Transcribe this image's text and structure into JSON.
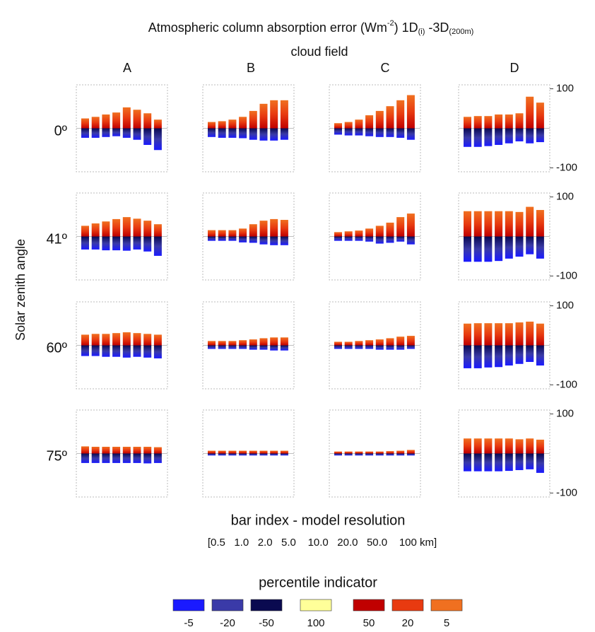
{
  "title_parts": [
    "Atmospheric column absorption error (Wm",
    "-2",
    ") 1D",
    "(i)",
    " -3D",
    "(200m)"
  ],
  "column_title": "cloud field",
  "columns": [
    "A",
    "B",
    "C",
    "D"
  ],
  "y_label": "Solar zenith angle",
  "rows": [
    "0º",
    "41º",
    "60º",
    "75º"
  ],
  "x_label": "bar index  - model resolution",
  "x_sublabel": "[0.5   1.0   2.0   5.0    10.0   20.0   50.0    100 km]",
  "legend": {
    "title": "percentile indicator",
    "items": [
      {
        "label": "-5",
        "color": "#1a1aff"
      },
      {
        "label": "-20",
        "color": "#3a3aa8"
      },
      {
        "label": "-50",
        "color": "#0a0a50"
      },
      {
        "label": "100",
        "color": "#ffff99"
      },
      {
        "label": "50",
        "color": "#c00000"
      },
      {
        "label": "20",
        "color": "#e83a10"
      },
      {
        "label": "5",
        "color": "#f07020"
      }
    ]
  },
  "chart_data": [
    {
      "type": "bar",
      "ylim": [
        -110,
        110
      ],
      "series": [
        {
          "colors": [
            "#c00000",
            "#e83a10",
            "#f07020"
          ],
          "values": [
            25,
            29,
            35,
            40,
            53,
            47,
            38,
            22
          ]
        },
        {
          "colors": [
            "#0a0a50",
            "#3a3aa8",
            "#1a1aff"
          ],
          "values": [
            -24,
            -24,
            -22,
            -20,
            -24,
            -29,
            -42,
            -55
          ]
        }
      ]
    },
    {
      "type": "bar",
      "ylim": [
        -110,
        110
      ],
      "series": [
        {
          "colors": [
            "#c00000",
            "#e83a10",
            "#f07020"
          ],
          "values": [
            16,
            18,
            22,
            29,
            44,
            62,
            71,
            71
          ]
        },
        {
          "colors": [
            "#0a0a50",
            "#3a3aa8",
            "#1a1aff"
          ],
          "values": [
            -22,
            -24,
            -24,
            -25,
            -29,
            -31,
            -31,
            -29
          ]
        }
      ]
    },
    {
      "type": "bar",
      "ylim": [
        -110,
        110
      ],
      "series": [
        {
          "colors": [
            "#c00000",
            "#e83a10",
            "#f07020"
          ],
          "values": [
            13,
            16,
            22,
            33,
            44,
            56,
            71,
            84
          ]
        },
        {
          "colors": [
            "#0a0a50",
            "#3a3aa8",
            "#1a1aff"
          ],
          "values": [
            -16,
            -18,
            -18,
            -20,
            -22,
            -22,
            -24,
            -29
          ]
        }
      ]
    },
    {
      "type": "bar",
      "ylim": [
        -110,
        110
      ],
      "yticks": [
        100,
        -100
      ],
      "series": [
        {
          "colors": [
            "#c00000",
            "#e83a10",
            "#f07020"
          ],
          "values": [
            29,
            31,
            31,
            35,
            35,
            38,
            80,
            65
          ]
        },
        {
          "colors": [
            "#0a0a50",
            "#3a3aa8",
            "#1a1aff"
          ],
          "values": [
            -47,
            -47,
            -45,
            -42,
            -38,
            -33,
            -38,
            -35
          ]
        }
      ]
    },
    {
      "type": "bar",
      "ylim": [
        -110,
        110
      ],
      "series": [
        {
          "colors": [
            "#c00000",
            "#e83a10",
            "#f07020"
          ],
          "values": [
            27,
            33,
            38,
            44,
            49,
            45,
            40,
            31
          ]
        },
        {
          "colors": [
            "#0a0a50",
            "#3a3aa8",
            "#1a1aff"
          ],
          "values": [
            -33,
            -33,
            -35,
            -35,
            -36,
            -33,
            -38,
            -49
          ]
        }
      ]
    },
    {
      "type": "bar",
      "ylim": [
        -110,
        110
      ],
      "series": [
        {
          "colors": [
            "#c00000",
            "#e83a10",
            "#f07020"
          ],
          "values": [
            16,
            16,
            16,
            20,
            31,
            40,
            44,
            42
          ]
        },
        {
          "colors": [
            "#0a0a50",
            "#3a3aa8",
            "#1a1aff"
          ],
          "values": [
            -11,
            -11,
            -11,
            -15,
            -16,
            -20,
            -22,
            -22
          ]
        }
      ]
    },
    {
      "type": "bar",
      "ylim": [
        -110,
        110
      ],
      "series": [
        {
          "colors": [
            "#c00000",
            "#e83a10",
            "#f07020"
          ],
          "values": [
            11,
            13,
            15,
            20,
            27,
            35,
            49,
            58
          ]
        },
        {
          "colors": [
            "#0a0a50",
            "#3a3aa8",
            "#1a1aff"
          ],
          "values": [
            -11,
            -11,
            -11,
            -13,
            -18,
            -16,
            -13,
            -20
          ]
        }
      ]
    },
    {
      "type": "bar",
      "ylim": [
        -110,
        110
      ],
      "yticks": [
        100,
        -100
      ],
      "series": [
        {
          "colors": [
            "#c00000",
            "#e83a10",
            "#f07020"
          ],
          "values": [
            64,
            64,
            64,
            64,
            64,
            62,
            75,
            67
          ]
        },
        {
          "colors": [
            "#0a0a50",
            "#3a3aa8",
            "#1a1aff"
          ],
          "values": [
            -64,
            -64,
            -64,
            -62,
            -56,
            -51,
            -45,
            -56
          ]
        }
      ]
    },
    {
      "type": "bar",
      "ylim": [
        -110,
        110
      ],
      "series": [
        {
          "colors": [
            "#c00000",
            "#e83a10",
            "#f07020"
          ],
          "values": [
            27,
            29,
            29,
            31,
            33,
            31,
            29,
            27
          ]
        },
        {
          "colors": [
            "#0a0a50",
            "#3a3aa8",
            "#1a1aff"
          ],
          "values": [
            -27,
            -27,
            -29,
            -29,
            -31,
            -29,
            -31,
            -33
          ]
        }
      ]
    },
    {
      "type": "bar",
      "ylim": [
        -110,
        110
      ],
      "series": [
        {
          "colors": [
            "#c00000",
            "#e83a10",
            "#f07020"
          ],
          "values": [
            11,
            11,
            11,
            13,
            15,
            18,
            20,
            20
          ]
        },
        {
          "colors": [
            "#0a0a50",
            "#3a3aa8",
            "#1a1aff"
          ],
          "values": [
            -9,
            -9,
            -9,
            -9,
            -11,
            -11,
            -13,
            -13
          ]
        }
      ]
    },
    {
      "type": "bar",
      "ylim": [
        -110,
        110
      ],
      "series": [
        {
          "colors": [
            "#c00000",
            "#e83a10",
            "#f07020"
          ],
          "values": [
            9,
            9,
            11,
            13,
            15,
            18,
            22,
            24
          ]
        },
        {
          "colors": [
            "#0a0a50",
            "#3a3aa8",
            "#1a1aff"
          ],
          "values": [
            -9,
            -9,
            -9,
            -9,
            -11,
            -11,
            -11,
            -9
          ]
        }
      ]
    },
    {
      "type": "bar",
      "ylim": [
        -110,
        110
      ],
      "yticks": [
        100,
        -100
      ],
      "series": [
        {
          "colors": [
            "#c00000",
            "#e83a10",
            "#f07020"
          ],
          "values": [
            55,
            56,
            56,
            56,
            56,
            58,
            60,
            55
          ]
        },
        {
          "colors": [
            "#0a0a50",
            "#3a3aa8",
            "#1a1aff"
          ],
          "values": [
            -58,
            -58,
            -56,
            -55,
            -51,
            -47,
            -42,
            -51
          ]
        }
      ]
    },
    {
      "type": "bar",
      "ylim": [
        -110,
        110
      ],
      "series": [
        {
          "colors": [
            "#c00000",
            "#e83a10",
            "#f07020"
          ],
          "values": [
            18,
            17,
            17,
            17,
            17,
            17,
            17,
            16
          ]
        },
        {
          "colors": [
            "#0a0a50",
            "#3a3aa8",
            "#1a1aff"
          ],
          "values": [
            -24,
            -24,
            -24,
            -24,
            -24,
            -24,
            -25,
            -24
          ]
        }
      ]
    },
    {
      "type": "bar",
      "ylim": [
        -110,
        110
      ],
      "series": [
        {
          "colors": [
            "#c00000",
            "#e83a10",
            "#f07020"
          ],
          "values": [
            7,
            7,
            7,
            7,
            7,
            7,
            7,
            7
          ]
        },
        {
          "colors": [
            "#0a0a50",
            "#3a3aa8",
            "#1a1aff"
          ],
          "values": [
            -5,
            -5,
            -5,
            -5,
            -5,
            -5,
            -5,
            -5
          ]
        }
      ]
    },
    {
      "type": "bar",
      "ylim": [
        -110,
        110
      ],
      "series": [
        {
          "colors": [
            "#c00000",
            "#e83a10",
            "#f07020"
          ],
          "values": [
            5,
            5,
            5,
            5,
            5,
            6,
            7,
            9
          ]
        },
        {
          "colors": [
            "#0a0a50",
            "#3a3aa8",
            "#1a1aff"
          ],
          "values": [
            -5,
            -5,
            -5,
            -5,
            -5,
            -5,
            -5,
            -5
          ]
        }
      ]
    },
    {
      "type": "bar",
      "ylim": [
        -110,
        110
      ],
      "yticks": [
        100,
        -100
      ],
      "series": [
        {
          "colors": [
            "#c00000",
            "#e83a10",
            "#f07020"
          ],
          "values": [
            38,
            38,
            38,
            38,
            38,
            36,
            38,
            35
          ]
        },
        {
          "colors": [
            "#0a0a50",
            "#3a3aa8",
            "#1a1aff"
          ],
          "values": [
            -45,
            -45,
            -45,
            -45,
            -44,
            -42,
            -40,
            -49
          ]
        }
      ]
    }
  ]
}
